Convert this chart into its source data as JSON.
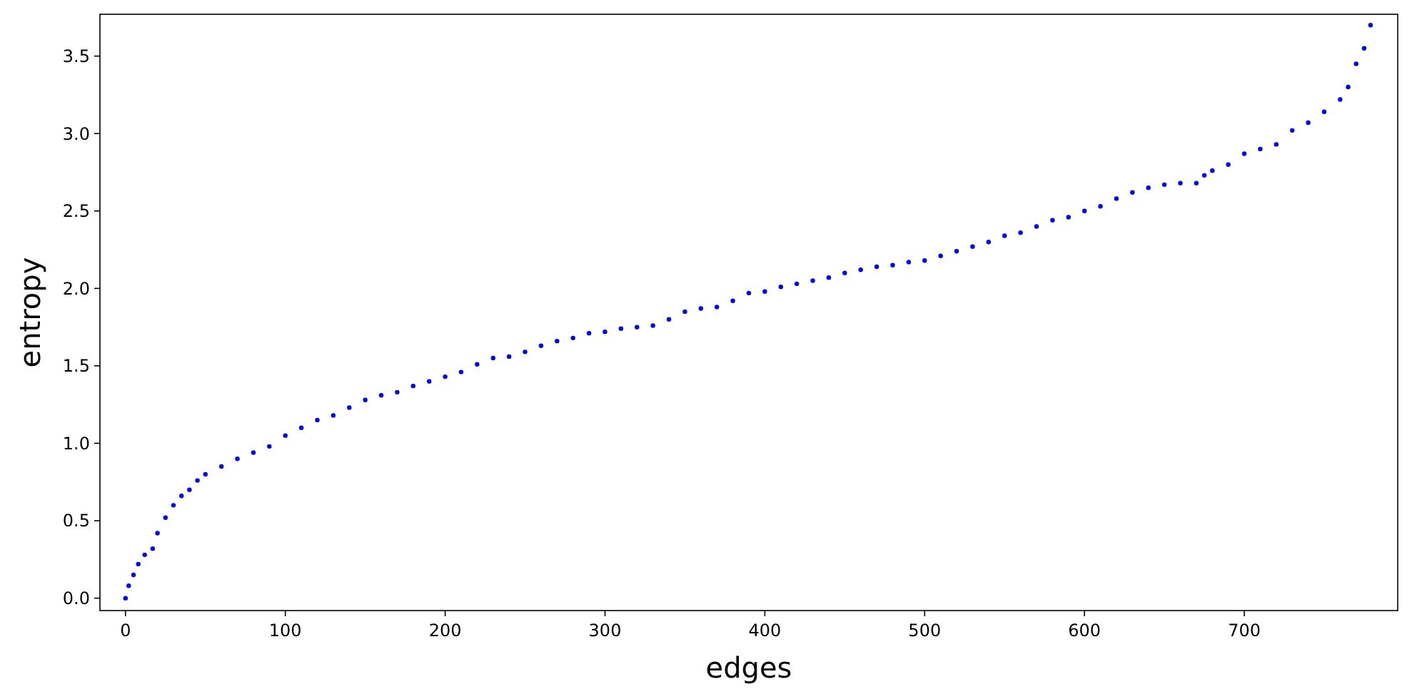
{
  "chart_data": {
    "type": "scatter",
    "xlabel": "edges",
    "ylabel": "entropy",
    "xlim": [
      -16,
      796
    ],
    "ylim": [
      -0.08,
      3.77
    ],
    "xticks": [
      0,
      100,
      200,
      300,
      400,
      500,
      600,
      700
    ],
    "yticks": [
      {
        "value": 0,
        "label": "0.0"
      },
      {
        "value": 0.5,
        "label": "0.5"
      },
      {
        "value": 1,
        "label": "1.0"
      },
      {
        "value": 1.5,
        "label": "1.5"
      },
      {
        "value": 2,
        "label": "2.0"
      },
      {
        "value": 2.5,
        "label": "2.5"
      },
      {
        "value": 3,
        "label": "3.0"
      },
      {
        "value": 3.5,
        "label": "3.5"
      }
    ],
    "grid": false,
    "marker": "circle",
    "series": [
      {
        "color": "#0000ff",
        "x": [
          0,
          2,
          5,
          8,
          12,
          17,
          20,
          25,
          30,
          35,
          40,
          45,
          50,
          60,
          70,
          80,
          90,
          100,
          110,
          120,
          130,
          140,
          150,
          160,
          170,
          180,
          190,
          200,
          210,
          220,
          230,
          240,
          250,
          260,
          270,
          280,
          290,
          300,
          310,
          320,
          330,
          340,
          350,
          360,
          370,
          380,
          390,
          400,
          410,
          420,
          430,
          440,
          450,
          460,
          470,
          480,
          490,
          500,
          510,
          520,
          530,
          540,
          550,
          560,
          570,
          580,
          590,
          600,
          610,
          620,
          630,
          640,
          650,
          660,
          670,
          675,
          680,
          690,
          700,
          710,
          720,
          730,
          740,
          750,
          760,
          765,
          770,
          775,
          779
        ],
        "values": [
          0.0,
          0.08,
          0.15,
          0.22,
          0.28,
          0.32,
          0.42,
          0.52,
          0.6,
          0.66,
          0.7,
          0.76,
          0.8,
          0.85,
          0.9,
          0.94,
          0.98,
          1.05,
          1.1,
          1.15,
          1.18,
          1.23,
          1.28,
          1.31,
          1.33,
          1.37,
          1.4,
          1.43,
          1.46,
          1.51,
          1.55,
          1.56,
          1.59,
          1.63,
          1.66,
          1.68,
          1.71,
          1.72,
          1.74,
          1.75,
          1.76,
          1.8,
          1.85,
          1.87,
          1.88,
          1.92,
          1.97,
          1.98,
          2.01,
          2.03,
          2.05,
          2.07,
          2.1,
          2.12,
          2.14,
          2.15,
          2.17,
          2.18,
          2.21,
          2.24,
          2.27,
          2.3,
          2.34,
          2.36,
          2.4,
          2.44,
          2.46,
          2.5,
          2.53,
          2.58,
          2.62,
          2.65,
          2.67,
          2.68,
          2.68,
          2.73,
          2.76,
          2.8,
          2.87,
          2.9,
          2.93,
          3.02,
          3.07,
          3.14,
          3.22,
          3.3,
          3.45,
          3.55,
          3.7
        ]
      }
    ]
  }
}
